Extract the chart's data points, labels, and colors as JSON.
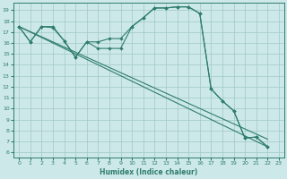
{
  "xlabel": "Humidex (Indice chaleur)",
  "xlim": [
    -0.5,
    23.5
  ],
  "ylim": [
    5.5,
    19.7
  ],
  "xticks": [
    0,
    1,
    2,
    3,
    4,
    5,
    6,
    7,
    8,
    9,
    10,
    11,
    12,
    13,
    14,
    15,
    16,
    17,
    18,
    19,
    20,
    21,
    22,
    23
  ],
  "yticks": [
    6,
    7,
    8,
    9,
    10,
    11,
    12,
    13,
    14,
    15,
    16,
    17,
    18,
    19
  ],
  "bg_color": "#cde8e8",
  "grid_color": "#a0c8c8",
  "line_color": "#2e7d6e",
  "curve1_x": [
    0,
    1,
    2,
    3,
    4,
    5,
    6,
    7,
    8,
    9,
    10,
    11,
    12,
    13,
    14,
    15,
    16,
    17,
    18,
    19,
    20,
    21,
    22
  ],
  "curve1_y": [
    17.5,
    16.1,
    17.5,
    17.4,
    16.2,
    14.7,
    16.1,
    15.5,
    15.5,
    15.5,
    17.5,
    18.3,
    19.2,
    19.2,
    19.3,
    19.3,
    18.7,
    11.8,
    10.7,
    9.8,
    7.3,
    7.4,
    6.5
  ],
  "curve4_x": [
    0,
    1,
    2,
    3,
    4,
    5,
    6,
    7,
    8,
    9,
    10,
    11,
    12,
    13,
    14,
    15,
    16,
    17,
    18,
    19,
    20,
    21,
    22
  ],
  "curve4_y": [
    17.5,
    16.1,
    17.5,
    17.5,
    16.2,
    14.7,
    16.1,
    16.1,
    16.4,
    16.4,
    17.5,
    18.3,
    19.2,
    19.2,
    19.3,
    19.3,
    18.7,
    11.8,
    10.7,
    9.8,
    7.3,
    7.4,
    6.5
  ]
}
